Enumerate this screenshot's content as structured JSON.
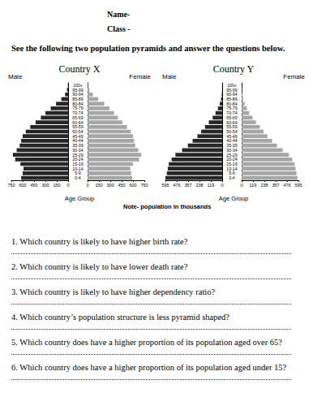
{
  "name_label": "Name-",
  "class_label": "Class -",
  "instruction": "See the following two population pyramids and answer the questions below.",
  "chart_data": [
    {
      "type": "bar",
      "orientation": "horizontal",
      "title": "Country X",
      "ylabel": "Age Group",
      "categories": [
        "0-4",
        "5-9",
        "10-14",
        "15-19",
        "20-24",
        "25-29",
        "30-34",
        "35-39",
        "40-44",
        "45-49",
        "50-54",
        "55-59",
        "60-64",
        "65-69",
        "70-74",
        "75-79",
        "80-84",
        "85-89",
        "90-94",
        "95-99",
        "100+"
      ],
      "series": [
        {
          "name": "Male",
          "color": "#262626",
          "values": [
            620,
            600,
            590,
            630,
            700,
            730,
            680,
            640,
            620,
            600,
            560,
            500,
            430,
            360,
            300,
            230,
            160,
            90,
            40,
            15,
            3
          ]
        },
        {
          "name": "Female",
          "color": "#a6a6a6",
          "values": [
            590,
            575,
            565,
            600,
            680,
            710,
            670,
            630,
            615,
            600,
            570,
            520,
            460,
            400,
            350,
            290,
            220,
            140,
            70,
            25,
            6
          ]
        }
      ],
      "xlim": [
        0,
        750
      ],
      "xticks": [
        0,
        150,
        300,
        450,
        600,
        750
      ]
    },
    {
      "type": "bar",
      "orientation": "horizontal",
      "title": "Country Y",
      "ylabel": "Age Group",
      "categories": [
        "0-4",
        "5-9",
        "10-14",
        "15-19",
        "20-24",
        "25-29",
        "30-34",
        "35-39",
        "40-44",
        "45-49",
        "50-54",
        "55-59",
        "60-64",
        "65-69",
        "70-74",
        "75-79",
        "80-84",
        "85-89",
        "90-94",
        "95-99",
        "100+"
      ],
      "series": [
        {
          "name": "Male",
          "color": "#262626",
          "values": [
            595,
            580,
            570,
            560,
            530,
            490,
            420,
            360,
            310,
            260,
            220,
            180,
            140,
            100,
            70,
            45,
            25,
            12,
            5,
            2,
            1
          ]
        },
        {
          "name": "Female",
          "color": "#a6a6a6",
          "values": [
            585,
            575,
            565,
            555,
            530,
            495,
            430,
            370,
            320,
            270,
            230,
            190,
            150,
            115,
            80,
            55,
            32,
            16,
            7,
            3,
            1
          ]
        }
      ],
      "xlim": [
        0,
        595
      ],
      "xticks": [
        0,
        119,
        238,
        357,
        476,
        595
      ]
    }
  ],
  "note": "Note- population in thousands",
  "questions": [
    "1. Which country is likely to have higher birth rate?",
    "2. Which country is likely to have lower death rate?",
    "3. Which country is likely to have higher dependency ratio?",
    "4. Which country’s population structure is less pyramid shaped?",
    "5. Which country does have a higher proportion of its population aged over 65?",
    "6. Which country does have a higher proportion of its population aged under 15?"
  ]
}
